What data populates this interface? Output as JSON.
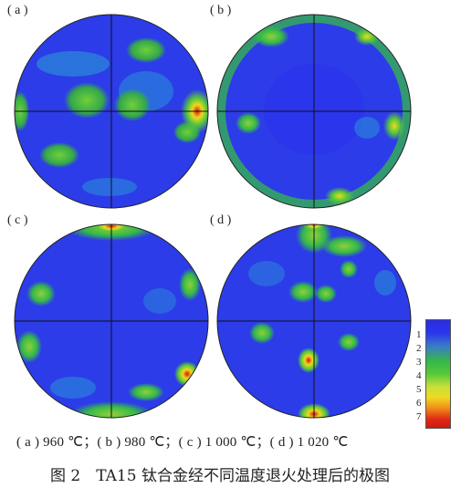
{
  "panels": [
    {
      "label": "( a )"
    },
    {
      "label": "( b )"
    },
    {
      "label": "( c )"
    },
    {
      "label": "( d )"
    }
  ],
  "legend": {
    "levels": [
      "1",
      "2",
      "3",
      "4",
      "5",
      "6",
      "7"
    ],
    "colors": [
      "#2a35ec",
      "#3aa0c0",
      "#35b84a",
      "#8fd03a",
      "#f0d820",
      "#f08a18",
      "#d01810"
    ]
  },
  "caption_line": "( a ) 960 ℃；( b ) 980 ℃；( c ) 1 000 ℃；( d ) 1 020 ℃",
  "figure_title": "图 2　TA15 钛合金经不同温度退火处理后的极图"
}
